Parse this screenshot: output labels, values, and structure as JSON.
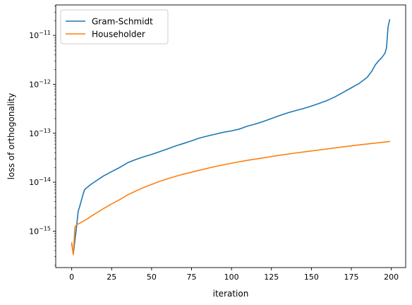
{
  "chart_data": {
    "type": "line",
    "title": "",
    "xlabel": "iteration",
    "ylabel": "loss of orthogonality",
    "yscale": "log",
    "xlim": [
      -10,
      209
    ],
    "ylim": [
      1.8e-16,
      4.2e-11
    ],
    "grid": false,
    "legend_position": "upper-left",
    "x_ticks": [
      0,
      25,
      50,
      75,
      100,
      125,
      150,
      175,
      200
    ],
    "x_tick_labels": [
      "0",
      "25",
      "50",
      "75",
      "100",
      "125",
      "150",
      "175",
      "200"
    ],
    "y_ticks": [
      1e-15,
      1e-14,
      1e-13,
      1e-12,
      1e-11
    ],
    "y_tick_labels": [
      {
        "base": "10",
        "exp": "−15"
      },
      {
        "base": "10",
        "exp": "−14"
      },
      {
        "base": "10",
        "exp": "−13"
      },
      {
        "base": "10",
        "exp": "−12"
      },
      {
        "base": "10",
        "exp": "−11"
      }
    ],
    "series": [
      {
        "name": "Gram-Schmidt",
        "color": "#1f77b4",
        "x": [
          0,
          1,
          2,
          3,
          4,
          5,
          6,
          7,
          8,
          9,
          10,
          12,
          15,
          20,
          25,
          30,
          35,
          40,
          45,
          50,
          55,
          60,
          65,
          70,
          75,
          80,
          85,
          90,
          95,
          100,
          105,
          110,
          115,
          120,
          125,
          130,
          135,
          140,
          145,
          150,
          155,
          160,
          165,
          170,
          175,
          180,
          185,
          188,
          190,
          192,
          194,
          196,
          197,
          198,
          199
        ],
        "y": [
          5.5e-16,
          3.4e-16,
          6.5e-16,
          1.2e-15,
          2.5e-15,
          3.2e-15,
          4.2e-15,
          5.5e-15,
          7e-15,
          7.5e-15,
          8e-15,
          9e-15,
          1.05e-14,
          1.35e-14,
          1.65e-14,
          2e-14,
          2.5e-14,
          2.9e-14,
          3.3e-14,
          3.7e-14,
          4.2e-14,
          4.8e-14,
          5.5e-14,
          6.2e-14,
          7e-14,
          8e-14,
          8.8e-14,
          9.6e-14,
          1.05e-13,
          1.12e-13,
          1.22e-13,
          1.4e-13,
          1.55e-13,
          1.75e-13,
          2e-13,
          2.3e-13,
          2.6e-13,
          2.9e-13,
          3.2e-13,
          3.6e-13,
          4.1e-13,
          4.7e-13,
          5.6e-13,
          6.9e-13,
          8.5e-13,
          1.05e-12,
          1.4e-12,
          1.9e-12,
          2.5e-12,
          3e-12,
          3.5e-12,
          4.3e-12,
          5.5e-12,
          1.5e-11,
          2.1e-11
        ]
      },
      {
        "name": "Householder",
        "color": "#ff7f0e",
        "x": [
          0,
          1,
          2,
          3,
          5,
          8,
          10,
          12,
          15,
          20,
          25,
          30,
          35,
          40,
          45,
          50,
          55,
          60,
          65,
          70,
          75,
          80,
          90,
          100,
          110,
          120,
          130,
          140,
          150,
          160,
          170,
          180,
          190,
          199
        ],
        "y": [
          5.8e-16,
          3.3e-16,
          1.2e-15,
          1.35e-15,
          1.45e-15,
          1.65e-15,
          1.8e-15,
          2e-15,
          2.3e-15,
          2.9e-15,
          3.6e-15,
          4.4e-15,
          5.5e-15,
          6.6e-15,
          7.8e-15,
          9e-15,
          1.04e-14,
          1.18e-14,
          1.32e-14,
          1.46e-14,
          1.6e-14,
          1.76e-14,
          2.1e-14,
          2.45e-14,
          2.8e-14,
          3.15e-14,
          3.55e-14,
          3.95e-14,
          4.35e-14,
          4.8e-14,
          5.3e-14,
          5.8e-14,
          6.3e-14,
          6.8e-14
        ]
      }
    ]
  }
}
